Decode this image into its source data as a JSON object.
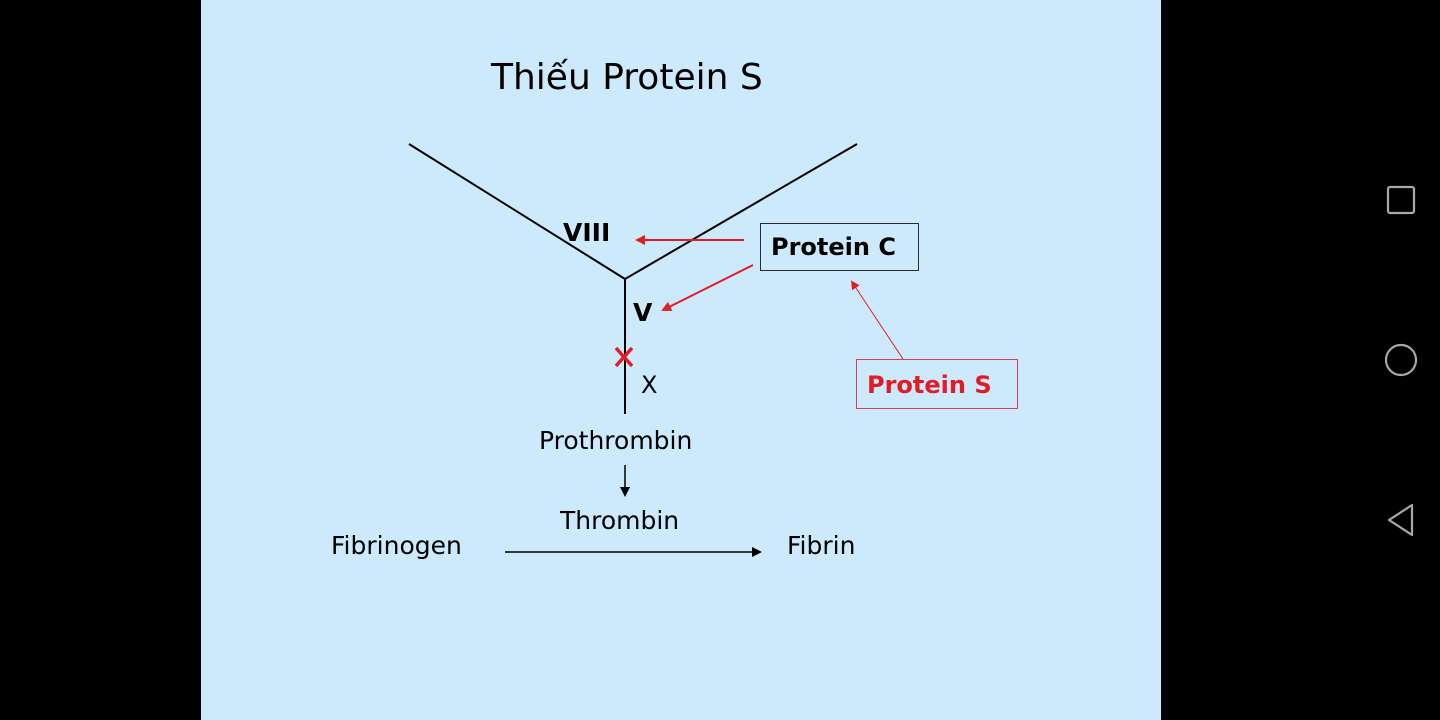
{
  "slide": {
    "title": "Thiếu Protein S",
    "labels": {
      "viii": "VIII",
      "v": "V",
      "x": "X",
      "prothrombin": "Prothrombin",
      "thrombin": "Thrombin",
      "fibrinogen": "Fibrinogen",
      "fibrin": "Fibrin"
    },
    "boxes": {
      "protein_c": "Protein C",
      "protein_s": "Protein S"
    },
    "colors": {
      "background": "#cdeafd",
      "inhibition_arrow": "#e31b23",
      "protein_s_text": "#e31b23",
      "protein_s_border": "#e0394a",
      "blocked_mark": "#e31b23"
    }
  },
  "navigation_bar": {
    "buttons": [
      {
        "name": "recents",
        "icon": "square-icon"
      },
      {
        "name": "home",
        "icon": "circle-icon"
      },
      {
        "name": "back",
        "icon": "triangle-left-icon"
      }
    ]
  }
}
